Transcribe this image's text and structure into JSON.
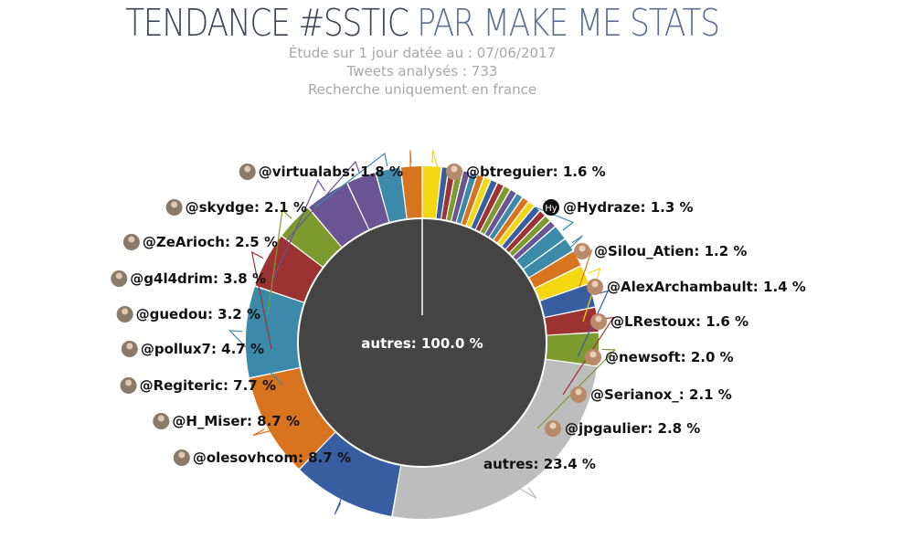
{
  "header": {
    "title_part1": "TENDANCE #SSTIC",
    "title_part2": " PAR MAKE ME STATS",
    "subtitle_1": "Étude sur 1 jour datée au : 07/06/2017",
    "subtitle_2": "Tweets analysés : 733",
    "subtitle_3": "Recherche uniquement en france"
  },
  "chart_data": {
    "type": "pie",
    "subtype": "donut",
    "inner": {
      "label": "autres",
      "value": 100.0,
      "color": "#444444"
    },
    "slices": [
      {
        "label": "@btreguier",
        "value": 1.6,
        "color": "#f2d712",
        "icon": "avatar"
      },
      {
        "label": "@Hydraze",
        "value": 1.3,
        "color": "#3c8aaa",
        "icon": "hy-badge"
      },
      {
        "label": "@Silou_Atien",
        "value": 1.2,
        "color": "#3c8aaa",
        "icon": "avatar"
      },
      {
        "label": "@AlexArchambault",
        "value": 1.4,
        "color": "#d9741e",
        "icon": "avatar"
      },
      {
        "label": "@LRestoux",
        "value": 1.6,
        "color": "#f2d712",
        "icon": "avatar"
      },
      {
        "label": "@newsoft",
        "value": 2.0,
        "color": "#375ea1",
        "icon": "avatar"
      },
      {
        "label": "@Serianox_",
        "value": 2.1,
        "color": "#9c3232",
        "icon": "avatar"
      },
      {
        "label": "@jpgaulier",
        "value": 2.8,
        "color": "#7c9a2e",
        "icon": "avatar"
      },
      {
        "label": "autres",
        "value": 23.4,
        "color": "#bdbdbd",
        "icon": ""
      },
      {
        "label": "@olesovhcom",
        "value": 8.7,
        "color": "#375ea1",
        "icon": "avatar"
      },
      {
        "label": "@H_Miser",
        "value": 8.7,
        "color": "#d9741e",
        "icon": "avatar"
      },
      {
        "label": "@Regiteric",
        "value": 7.7,
        "color": "#3c8aaa",
        "icon": "avatar"
      },
      {
        "label": "@pollux7",
        "value": 4.7,
        "color": "#9c3232",
        "icon": "avatar"
      },
      {
        "label": "@guedou",
        "value": 3.2,
        "color": "#7c9a2e",
        "icon": "avatar"
      },
      {
        "label": "@g4l4drim",
        "value": 3.8,
        "color": "#6a5493",
        "icon": "avatar"
      },
      {
        "label": "@ZeArioch",
        "value": 2.5,
        "color": "#6a5493",
        "icon": "avatar"
      },
      {
        "label": "@skydge",
        "value": 2.1,
        "color": "#3c8aaa",
        "icon": "avatar"
      },
      {
        "label": "@virtualabs",
        "value": 1.8,
        "color": "#d9741e",
        "icon": "avatar"
      }
    ],
    "small_slices": [
      {
        "value": 0.6,
        "color": "#375ea1"
      },
      {
        "value": 0.6,
        "color": "#9c3232"
      },
      {
        "value": 0.6,
        "color": "#7c9a2e"
      },
      {
        "value": 0.6,
        "color": "#6a5493"
      },
      {
        "value": 0.6,
        "color": "#3c8aaa"
      },
      {
        "value": 0.6,
        "color": "#d9741e"
      },
      {
        "value": 0.6,
        "color": "#f2d712"
      },
      {
        "value": 0.6,
        "color": "#375ea1"
      },
      {
        "value": 0.6,
        "color": "#9c3232"
      },
      {
        "value": 0.6,
        "color": "#7c9a2e"
      },
      {
        "value": 0.6,
        "color": "#6a5493"
      },
      {
        "value": 0.6,
        "color": "#3c8aaa"
      },
      {
        "value": 0.6,
        "color": "#d9741e"
      },
      {
        "value": 0.6,
        "color": "#f2d712"
      },
      {
        "value": 0.6,
        "color": "#375ea1"
      },
      {
        "value": 0.6,
        "color": "#9c3232"
      },
      {
        "value": 0.6,
        "color": "#7c9a2e"
      },
      {
        "value": 0.6,
        "color": "#6a5493"
      }
    ]
  }
}
